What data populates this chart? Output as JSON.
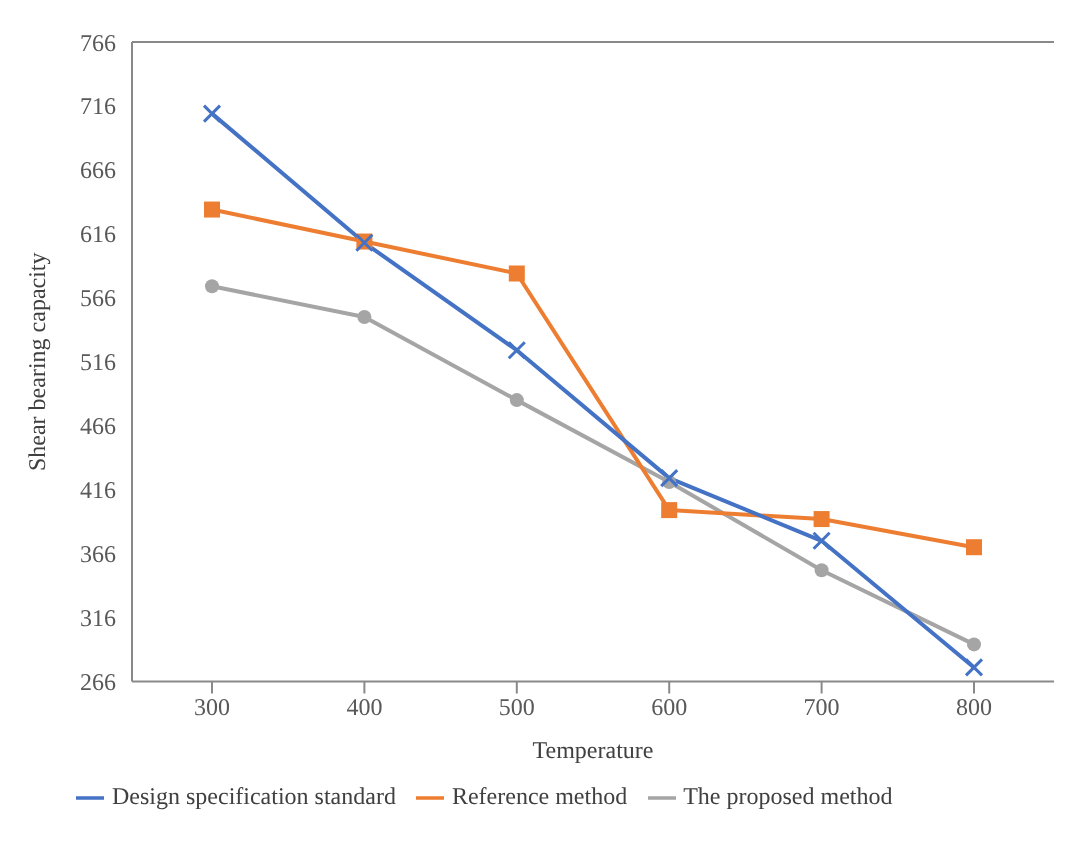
{
  "chart_data": {
    "type": "line",
    "xlabel": "Temperature",
    "ylabel": "Shear bearing capacity",
    "categories": [
      "300",
      "400",
      "500",
      "600",
      "700",
      "800"
    ],
    "series": [
      {
        "name": "Design specification standard",
        "color": "#4472c4",
        "marker": "cross",
        "values": [
          710,
          609,
          525,
          425,
          376,
          277
        ]
      },
      {
        "name": "Reference method",
        "color": "#ed7d31",
        "marker": "square",
        "values": [
          635,
          610,
          585,
          400,
          393,
          371
        ]
      },
      {
        "name": "The proposed method",
        "color": "#a5a5a5",
        "marker": "circle",
        "values": [
          575,
          551,
          486,
          422,
          353,
          295
        ]
      }
    ],
    "ylim": [
      266,
      766
    ],
    "yticks": [
      266,
      316,
      366,
      416,
      466,
      516,
      566,
      616,
      666,
      716,
      766
    ],
    "legend": "bottom"
  }
}
